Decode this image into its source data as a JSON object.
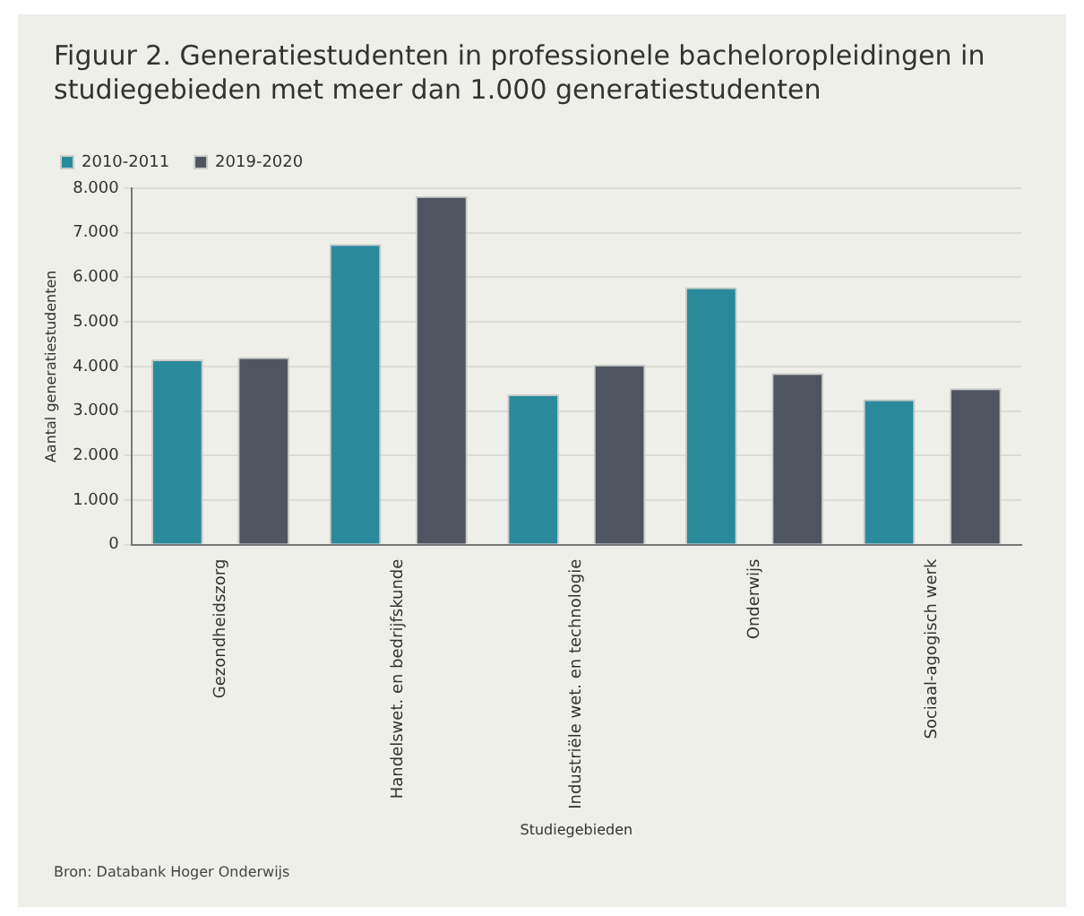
{
  "chart_data": {
    "type": "bar",
    "title": "Figuur 2. Generatiestudenten in professionele bacheloropleidingen in studiegebieden met meer dan 1.000 generatiestudenten",
    "xlabel": "Studiegebieden",
    "ylabel": "Aantal generatiestudenten",
    "categories": [
      "Gezondheidszorg",
      "Handelswet. en bedrijfskunde",
      "Industriële wet. en technologie",
      "Onderwijs",
      "Sociaal-agogisch werk"
    ],
    "series": [
      {
        "name": "2010-2011",
        "color": "#2a8a9c",
        "values": [
          4160,
          6750,
          3375,
          5775,
          3260
        ]
      },
      {
        "name": "2019-2020",
        "color": "#4f5560",
        "values": [
          4210,
          7825,
          4040,
          3850,
          3510
        ]
      }
    ],
    "ylim": [
      0,
      8000
    ],
    "yticks": [
      {
        "value": 0,
        "label": "0"
      },
      {
        "value": 1000,
        "label": "1.000"
      },
      {
        "value": 2000,
        "label": "2.000"
      },
      {
        "value": 3000,
        "label": "3.000"
      },
      {
        "value": 4000,
        "label": "4.000"
      },
      {
        "value": 5000,
        "label": "5.000"
      },
      {
        "value": 6000,
        "label": "6.000"
      },
      {
        "value": 7000,
        "label": "7.000"
      },
      {
        "value": 8000,
        "label": "8.000"
      }
    ],
    "grid": "y",
    "legend": "top left",
    "annotations": [
      "Bron: Databank Hoger Onderwijs"
    ]
  }
}
